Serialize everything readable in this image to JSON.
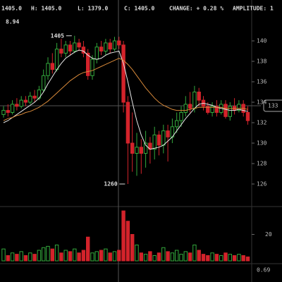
{
  "chart_data": {
    "type": "candlestick",
    "header": [
      "1405.0",
      "H: 1405.0",
      "L: 1379.0",
      "C: 1405.0",
      "CHANGE: + 0.28 %",
      "AMPLITUDE: 1"
    ],
    "corner_label": "8.94",
    "current_price_label": "133",
    "indicator_label": "0.69",
    "annotations": [
      {
        "text": "1405",
        "index": 16,
        "value": 1405
      },
      {
        "text": "1260",
        "index": 28,
        "value": 1260
      }
    ],
    "up_color": "#33a83c",
    "down_color": "#d3232b",
    "open": [
      1328,
      1332,
      1330,
      1338,
      1336,
      1342,
      1340,
      1346,
      1344,
      1352,
      1366,
      1378,
      1372,
      1392,
      1388,
      1396,
      1390,
      1398,
      1394,
      1388,
      1366,
      1382,
      1394,
      1390,
      1398,
      1392,
      1400,
      1396,
      1340,
      1300,
      1290,
      1296,
      1290,
      1300,
      1294,
      1308,
      1298,
      1312,
      1306,
      1316,
      1322,
      1330,
      1338,
      1334,
      1350,
      1342,
      1336,
      1330,
      1336,
      1330,
      1338,
      1326,
      1336,
      1332,
      1338,
      1330
    ],
    "high": [
      1336,
      1338,
      1342,
      1344,
      1346,
      1346,
      1350,
      1352,
      1356,
      1372,
      1384,
      1388,
      1398,
      1402,
      1400,
      1400,
      1405,
      1402,
      1400,
      1392,
      1386,
      1398,
      1400,
      1402,
      1402,
      1404,
      1404,
      1400,
      1346,
      1330,
      1310,
      1304,
      1312,
      1306,
      1316,
      1312,
      1318,
      1318,
      1324,
      1330,
      1336,
      1346,
      1350,
      1356,
      1354,
      1346,
      1340,
      1340,
      1342,
      1342,
      1342,
      1340,
      1344,
      1342,
      1342,
      1336
    ],
    "low": [
      1325,
      1326,
      1328,
      1332,
      1334,
      1336,
      1338,
      1340,
      1342,
      1350,
      1362,
      1368,
      1370,
      1384,
      1384,
      1386,
      1388,
      1390,
      1384,
      1362,
      1362,
      1378,
      1386,
      1386,
      1388,
      1390,
      1392,
      1330,
      1260,
      1272,
      1268,
      1270,
      1276,
      1280,
      1284,
      1288,
      1290,
      1282,
      1300,
      1310,
      1316,
      1326,
      1330,
      1330,
      1336,
      1332,
      1328,
      1326,
      1326,
      1328,
      1324,
      1322,
      1328,
      1330,
      1326,
      1318
    ],
    "close": [
      1332,
      1330,
      1338,
      1336,
      1342,
      1340,
      1346,
      1344,
      1352,
      1366,
      1378,
      1372,
      1392,
      1388,
      1396,
      1390,
      1398,
      1394,
      1388,
      1366,
      1382,
      1394,
      1390,
      1398,
      1392,
      1400,
      1396,
      1340,
      1300,
      1290,
      1296,
      1290,
      1300,
      1294,
      1308,
      1298,
      1312,
      1306,
      1316,
      1322,
      1330,
      1338,
      1334,
      1350,
      1342,
      1336,
      1330,
      1336,
      1330,
      1338,
      1326,
      1336,
      1332,
      1338,
      1330,
      1322
    ],
    "volume": [
      90,
      40,
      60,
      50,
      70,
      40,
      60,
      50,
      80,
      100,
      110,
      90,
      120,
      60,
      80,
      70,
      90,
      60,
      80,
      180,
      60,
      70,
      80,
      90,
      60,
      70,
      80,
      378,
      300,
      200,
      120,
      60,
      50,
      70,
      40,
      60,
      100,
      70,
      60,
      80,
      50,
      70,
      60,
      120,
      80,
      50,
      40,
      60,
      50,
      40,
      60,
      50,
      40,
      50,
      40,
      30
    ],
    "series": [
      {
        "name": "MA short",
        "color": "#e8e8e8",
        "values": [
          1320,
          1322,
          1325,
          1328,
          1331,
          1334,
          1337,
          1340,
          1344,
          1350,
          1358,
          1365,
          1372,
          1378,
          1383,
          1386,
          1389,
          1391,
          1390,
          1386,
          1383,
          1382,
          1383,
          1386,
          1388,
          1389,
          1390,
          1378,
          1360,
          1340,
          1322,
          1308,
          1298,
          1294,
          1295,
          1296,
          1298,
          1302,
          1306,
          1312,
          1318,
          1324,
          1329,
          1334,
          1338,
          1339,
          1338,
          1337,
          1335,
          1334,
          1333,
          1332,
          1332,
          1333,
          1332,
          1331
        ]
      },
      {
        "name": "MA long",
        "color": "#d98a3a",
        "values": [
          1322,
          1324,
          1325,
          1327,
          1328,
          1330,
          1331,
          1333,
          1335,
          1338,
          1341,
          1345,
          1349,
          1353,
          1357,
          1361,
          1364,
          1367,
          1369,
          1370,
          1371,
          1373,
          1375,
          1377,
          1379,
          1381,
          1383,
          1381,
          1377,
          1372,
          1366,
          1360,
          1354,
          1349,
          1344,
          1340,
          1337,
          1335,
          1333,
          1332,
          1332,
          1332,
          1333,
          1334,
          1335,
          1335,
          1335,
          1335,
          1335,
          1335,
          1334,
          1334,
          1334,
          1334,
          1334,
          1333
        ]
      }
    ],
    "ylim": [
      1240,
      1440
    ],
    "yticks": [
      {
        "value": 1400,
        "label": "140"
      },
      {
        "value": 1380,
        "label": "138"
      },
      {
        "value": 1360,
        "label": "136"
      },
      {
        "value": 1340,
        "label": "134"
      },
      {
        "value": 1320,
        "label": "132"
      },
      {
        "value": 1300,
        "label": "130"
      },
      {
        "value": 1280,
        "label": "128"
      },
      {
        "value": 1260,
        "label": "126"
      }
    ],
    "volume_ylim": [
      0,
      400
    ],
    "volume_yticks": [
      {
        "value": 200,
        "label": "20"
      }
    ]
  }
}
